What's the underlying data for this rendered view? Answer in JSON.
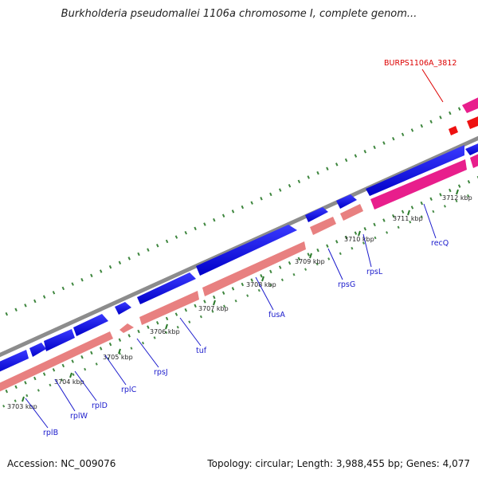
{
  "title": "Burkholderia pseudomallei 1106a chromosome I, complete genom...",
  "footer": {
    "accession": "Accession: NC_009076",
    "summary": "Topology: circular; Length: 3,988,455 bp; Genes: 4,077"
  },
  "colors": {
    "forward_gene": "#0a0ae6",
    "reverse_gene_light": "#e88080",
    "reverse_gene_pink": "#e81e8c",
    "highlight_gene": "#ee1111",
    "backbone": "#8c8c8c",
    "ticks": "#2a7a2a",
    "gene_label": "#1a1acc",
    "highlight_label": "#dd0000"
  },
  "kbp_labels": [
    "3703 kbp",
    "3704 kbp",
    "3705 kbp",
    "3706 kbp",
    "3707 kbp",
    "3708 kbp",
    "3709 kbp",
    "3710 kbp",
    "3711 kbp",
    "3712 kbp"
  ],
  "gene_labels": [
    "rplB",
    "rplW",
    "rplD",
    "rplC",
    "rpsJ",
    "tuf",
    "fusA",
    "rpsG",
    "rpsL",
    "recQ"
  ],
  "highlight_label": "BURPS1106A_3812"
}
